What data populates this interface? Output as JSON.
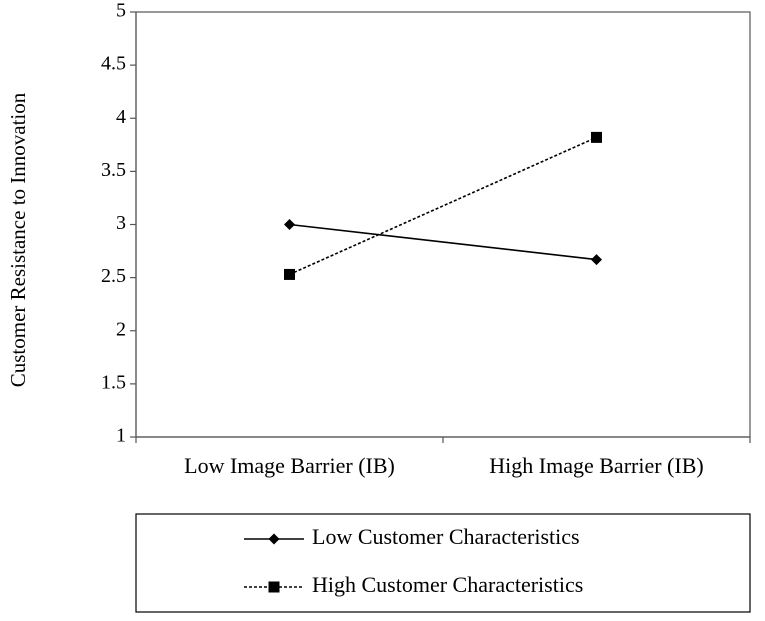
{
  "chart_data": {
    "type": "line",
    "categories": [
      "Low Image Barrier (IB)",
      "High Image Barrier (IB)"
    ],
    "series": [
      {
        "name": "Low Customer Characteristics",
        "values": [
          3.0,
          2.67
        ],
        "marker": "diamond",
        "line_style": "solid",
        "color": "#000000"
      },
      {
        "name": "High Customer Characteristics",
        "values": [
          2.53,
          3.82
        ],
        "marker": "square",
        "line_style": "dotted",
        "color": "#000000"
      }
    ],
    "title": "",
    "xlabel": "",
    "ylabel": "Customer Resistance to Innovation",
    "ylim": [
      1,
      5
    ],
    "yticks": [
      "1",
      "1.5",
      "2",
      "2.5",
      "3",
      "3.5",
      "4",
      "4.5",
      "5"
    ],
    "grid": false,
    "legend_position": "bottom"
  }
}
